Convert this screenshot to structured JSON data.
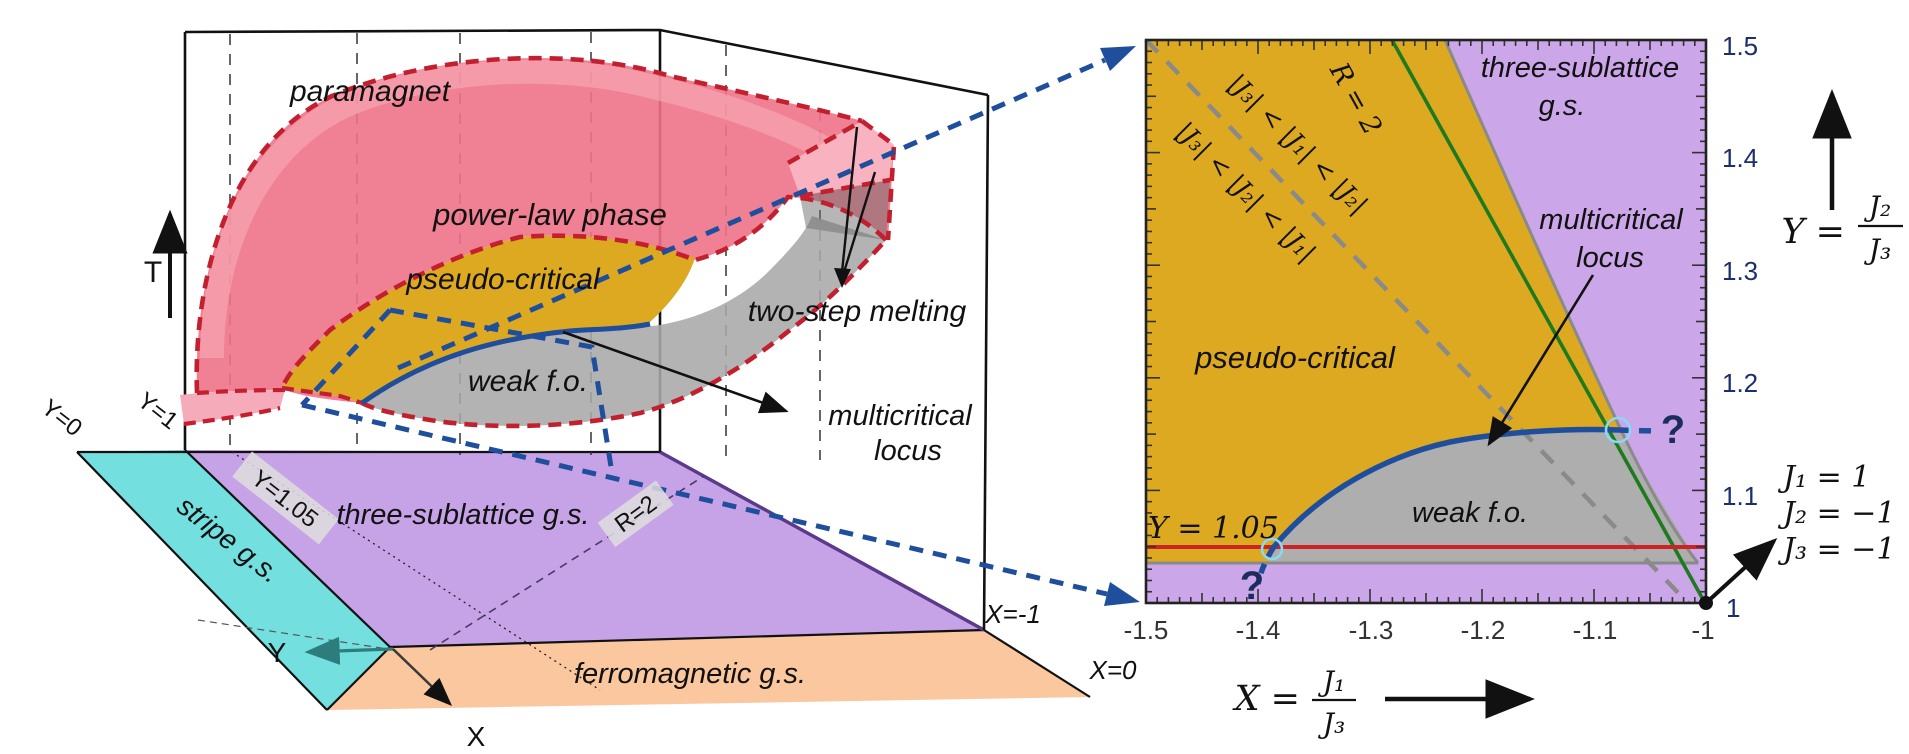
{
  "figure": {
    "left": {
      "t_axis": "T",
      "x_axis": "X",
      "y_axis": "Y",
      "paramagnet": "paramagnet",
      "power_law": "power-law phase",
      "pseudo_critical": "pseudo-critical",
      "weak_fo": "weak f.o.",
      "two_step": "two-step melting",
      "multicritical_line1": "multicritical",
      "multicritical_line2": "locus",
      "y0": "Y=0",
      "y1": "Y=1",
      "y105": "Y=1.05",
      "r2": "R=2",
      "stripe": "stripe g.s.",
      "three_sublattice": "three-sublattice g.s.",
      "ferromagnet": "ferromagnetic g.s.",
      "x_minus1": "X=-1",
      "x_0": "X=0"
    },
    "right": {
      "ineq_upper": "|J₃| < |J₁| < |J₂|",
      "ineq_lower": "|J₃| < |J₂| < |J₁|",
      "r2": "R = 2",
      "three_sublattice_line1": "three-sublattice",
      "three_sublattice_line2": "g.s.",
      "multicritical_line1": "multicritical",
      "multicritical_line2": "locus",
      "pseudo_critical": "pseudo-critical",
      "weak_fo": "weak f.o.",
      "y105": "Y = 1.05",
      "q_bottom": "?",
      "q_right": "?",
      "x_axis": {
        "prefix": "X =",
        "numerator": "J₁",
        "denominator": "J₃",
        "range": [
          -1.5,
          -1
        ],
        "ticks": [
          "-1.5",
          "-1.4",
          "-1.3",
          "-1.2",
          "-1.1",
          "-1"
        ]
      },
      "y_axis": {
        "prefix": "Y =",
        "numerator": "J₂",
        "denominator": "J₃",
        "range": [
          1,
          1.5
        ],
        "ticks": [
          "1.5",
          "1.4",
          "1.3",
          "1.2",
          "1.1",
          "1"
        ]
      },
      "params": {
        "j1": "J₁ = 1",
        "j2": "J₂ = −1",
        "j3": "J₃ = −1"
      }
    },
    "colors": {
      "power_law_fill": "#EE7287",
      "power_law_light": "#F6ABBA",
      "pseudo_critical_fill": "#DCA920",
      "weak_fo_fill": "#A8A8A8",
      "three_sublattice_fill": "#C6A3E6",
      "stripe_fill": "#73DFDF",
      "ferromagnet_fill": "#FBC79E",
      "dashed_red_border": "#C2202F",
      "multicritical_blue": "#1F4E9C",
      "r2_green": "#1E7A1E",
      "y105_red": "#CC2424",
      "boundary_gray": "#8A8A8A"
    }
  }
}
